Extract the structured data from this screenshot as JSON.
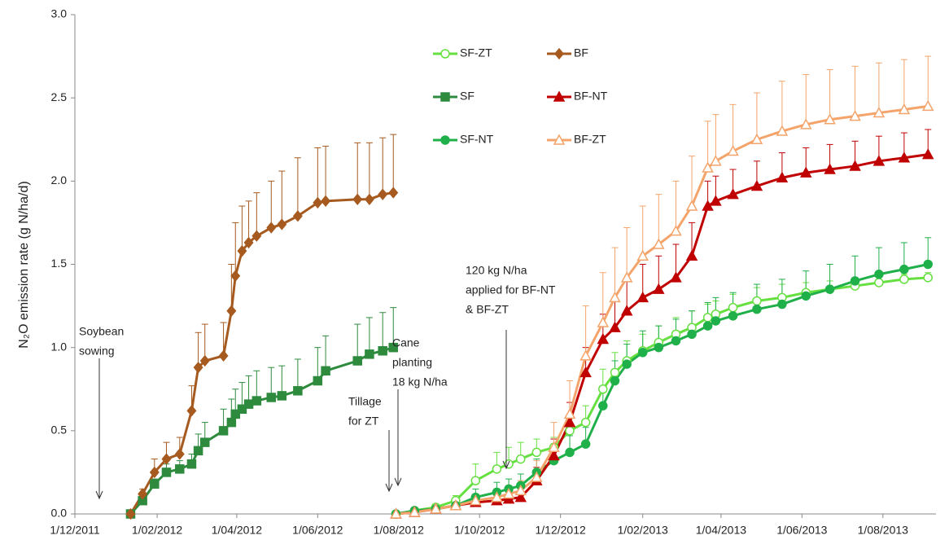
{
  "chart_data": {
    "type": "line",
    "y_label": "N₂O emission rate (g N/ha/d)",
    "xlim": [
      "2011-12-01",
      "2013-09-10"
    ],
    "xticks": [
      {
        "value": "2011-12-01",
        "label": "1/12/2011"
      },
      {
        "value": "2012-02-01",
        "label": "1/02/2012"
      },
      {
        "value": "2012-04-01",
        "label": "1/04/2012"
      },
      {
        "value": "2012-06-01",
        "label": "1/06/2012"
      },
      {
        "value": "2012-08-01",
        "label": "1/08/2012"
      },
      {
        "value": "2012-10-01",
        "label": "1/10/2012"
      },
      {
        "value": "2012-12-01",
        "label": "1/12/2012"
      },
      {
        "value": "2013-02-01",
        "label": "1/02/2013"
      },
      {
        "value": "2013-04-01",
        "label": "1/04/2013"
      },
      {
        "value": "2013-06-01",
        "label": "1/06/2013"
      },
      {
        "value": "2013-08-01",
        "label": "1/08/2013"
      }
    ],
    "ylim": [
      0,
      3
    ],
    "yticks": [
      {
        "value": 0,
        "label": "0.0"
      },
      0.5,
      {
        "value": 1,
        "label": "1.0"
      },
      1.5,
      {
        "value": 2,
        "label": "2.0"
      },
      2.5,
      {
        "value": 3,
        "label": "3.0"
      }
    ],
    "grid": false,
    "series": [
      {
        "name": "SF-ZT",
        "color": "#66e040",
        "marker": "circle",
        "filled": false,
        "x": [
          "2012-07-30",
          "2012-08-13",
          "2012-08-29",
          "2012-09-13",
          "2012-09-28",
          "2012-10-14",
          "2012-10-23",
          "2012-11-01",
          "2012-11-13",
          "2012-11-26",
          "2012-12-08",
          "2012-12-20",
          "2013-01-02",
          "2013-01-11",
          "2013-01-20",
          "2013-02-01",
          "2013-02-13",
          "2013-02-26",
          "2013-03-10",
          "2013-03-22",
          "2013-03-28",
          "2013-04-10",
          "2013-04-28",
          "2013-05-17",
          "2013-06-04",
          "2013-06-22",
          "2013-07-11",
          "2013-07-29",
          "2013-08-17",
          "2013-09-04"
        ],
        "values": [
          0,
          0.02,
          0.04,
          0.08,
          0.2,
          0.27,
          0.3,
          0.33,
          0.37,
          0.4,
          0.5,
          0.55,
          0.75,
          0.85,
          0.92,
          0.98,
          1.03,
          1.08,
          1.12,
          1.18,
          1.2,
          1.24,
          1.28,
          1.3,
          1.33,
          1.35,
          1.37,
          1.39,
          1.41,
          1.42
        ],
        "errors": [
          0,
          0.01,
          0.02,
          0.03,
          0.1,
          0.1,
          0.1,
          0.1,
          0.08,
          0.06,
          0.08,
          0.1,
          0.12,
          0.12,
          0.12,
          0.1,
          0.1,
          0.1,
          0.1,
          0.08,
          0.08,
          0.08,
          0.08,
          0.08,
          0.06,
          0.05,
          0.05,
          0.05,
          0.03,
          0.03
        ]
      },
      {
        "name": "SF",
        "color": "#2e8b3e",
        "marker": "square",
        "filled": true,
        "x": [
          "2012-01-12",
          "2012-01-21",
          "2012-01-30",
          "2012-02-08",
          "2012-02-18",
          "2012-02-27",
          "2012-03-03",
          "2012-03-08",
          "2012-03-22",
          "2012-03-28",
          "2012-03-31",
          "2012-04-05",
          "2012-04-10",
          "2012-04-16",
          "2012-04-27",
          "2012-05-05",
          "2012-05-17",
          "2012-06-01",
          "2012-06-07",
          "2012-07-01",
          "2012-07-10",
          "2012-07-20",
          "2012-07-28"
        ],
        "values": [
          0,
          0.08,
          0.18,
          0.25,
          0.27,
          0.3,
          0.38,
          0.43,
          0.5,
          0.55,
          0.6,
          0.63,
          0.66,
          0.68,
          0.7,
          0.71,
          0.74,
          0.8,
          0.86,
          0.92,
          0.96,
          0.98,
          1.0
        ],
        "errors": [
          0,
          0.02,
          0.03,
          0.05,
          0.05,
          0.06,
          0.1,
          0.12,
          0.13,
          0.14,
          0.15,
          0.16,
          0.17,
          0.18,
          0.18,
          0.18,
          0.19,
          0.2,
          0.21,
          0.22,
          0.22,
          0.23,
          0.24
        ]
      },
      {
        "name": "SF-NT",
        "color": "#1fb04a",
        "marker": "circle",
        "filled": true,
        "x": [
          "2012-07-30",
          "2012-08-13",
          "2012-08-29",
          "2012-09-13",
          "2012-09-28",
          "2012-10-14",
          "2012-10-23",
          "2012-11-01",
          "2012-11-13",
          "2012-11-26",
          "2012-12-08",
          "2012-12-20",
          "2013-01-02",
          "2013-01-11",
          "2013-01-20",
          "2013-02-01",
          "2013-02-13",
          "2013-02-26",
          "2013-03-10",
          "2013-03-22",
          "2013-03-28",
          "2013-04-10",
          "2013-04-28",
          "2013-05-17",
          "2013-06-04",
          "2013-06-22",
          "2013-07-11",
          "2013-07-29",
          "2013-08-17",
          "2013-09-04"
        ],
        "values": [
          0,
          0.02,
          0.03,
          0.05,
          0.1,
          0.13,
          0.15,
          0.17,
          0.25,
          0.32,
          0.37,
          0.42,
          0.65,
          0.8,
          0.9,
          0.97,
          1.0,
          1.04,
          1.08,
          1.13,
          1.16,
          1.19,
          1.23,
          1.26,
          1.31,
          1.35,
          1.4,
          1.44,
          1.47,
          1.5
        ],
        "errors": [
          0,
          0.01,
          0.02,
          0.03,
          0.05,
          0.06,
          0.06,
          0.07,
          0.08,
          0.1,
          0.1,
          0.1,
          0.12,
          0.12,
          0.12,
          0.13,
          0.13,
          0.13,
          0.14,
          0.14,
          0.14,
          0.14,
          0.15,
          0.15,
          0.15,
          0.15,
          0.15,
          0.16,
          0.16,
          0.16
        ]
      },
      {
        "name": "BF",
        "color": "#a65a1f",
        "marker": "diamond",
        "filled": true,
        "x": [
          "2012-01-12",
          "2012-01-21",
          "2012-01-30",
          "2012-02-08",
          "2012-02-18",
          "2012-02-27",
          "2012-03-03",
          "2012-03-08",
          "2012-03-22",
          "2012-03-28",
          "2012-03-31",
          "2012-04-05",
          "2012-04-10",
          "2012-04-16",
          "2012-04-27",
          "2012-05-05",
          "2012-05-17",
          "2012-06-01",
          "2012-06-07",
          "2012-07-01",
          "2012-07-10",
          "2012-07-20",
          "2012-07-28"
        ],
        "values": [
          0,
          0.12,
          0.25,
          0.33,
          0.36,
          0.62,
          0.88,
          0.92,
          0.95,
          1.22,
          1.43,
          1.58,
          1.63,
          1.67,
          1.72,
          1.74,
          1.79,
          1.87,
          1.88,
          1.89,
          1.89,
          1.92,
          1.93
        ],
        "errors": [
          0,
          0.03,
          0.08,
          0.1,
          0.1,
          0.15,
          0.21,
          0.22,
          0.2,
          0.28,
          0.32,
          0.27,
          0.25,
          0.26,
          0.28,
          0.32,
          0.35,
          0.33,
          0.33,
          0.34,
          0.34,
          0.34,
          0.35
        ]
      },
      {
        "name": "BF-NT",
        "color": "#c00000",
        "marker": "triangle",
        "filled": true,
        "x": [
          "2012-07-30",
          "2012-08-13",
          "2012-08-29",
          "2012-09-13",
          "2012-09-28",
          "2012-10-14",
          "2012-10-23",
          "2012-11-01",
          "2012-11-13",
          "2012-11-26",
          "2012-12-08",
          "2012-12-20",
          "2013-01-02",
          "2013-01-11",
          "2013-01-20",
          "2013-02-01",
          "2013-02-13",
          "2013-02-26",
          "2013-03-10",
          "2013-03-22",
          "2013-03-28",
          "2013-04-10",
          "2013-04-28",
          "2013-05-17",
          "2013-06-04",
          "2013-06-22",
          "2013-07-11",
          "2013-07-29",
          "2013-08-17",
          "2013-09-04"
        ],
        "values": [
          0,
          0.01,
          0.03,
          0.05,
          0.07,
          0.08,
          0.09,
          0.1,
          0.2,
          0.35,
          0.55,
          0.85,
          1.05,
          1.12,
          1.22,
          1.3,
          1.35,
          1.42,
          1.55,
          1.85,
          1.88,
          1.92,
          1.97,
          2.02,
          2.05,
          2.07,
          2.09,
          2.12,
          2.14,
          2.16
        ],
        "errors": [
          0,
          0.01,
          0.02,
          0.03,
          0.03,
          0.04,
          0.04,
          0.05,
          0.08,
          0.1,
          0.12,
          0.15,
          0.15,
          0.18,
          0.18,
          0.2,
          0.2,
          0.2,
          0.2,
          0.15,
          0.15,
          0.15,
          0.15,
          0.15,
          0.15,
          0.15,
          0.15,
          0.15,
          0.15,
          0.15
        ]
      },
      {
        "name": "BF-ZT",
        "color": "#f4a46a",
        "marker": "triangle",
        "filled": false,
        "x": [
          "2012-07-30",
          "2012-08-13",
          "2012-08-29",
          "2012-09-13",
          "2012-09-28",
          "2012-10-14",
          "2012-10-23",
          "2012-11-01",
          "2012-11-13",
          "2012-11-26",
          "2012-12-08",
          "2012-12-20",
          "2013-01-02",
          "2013-01-11",
          "2013-01-20",
          "2013-02-01",
          "2013-02-13",
          "2013-02-26",
          "2013-03-10",
          "2013-03-22",
          "2013-03-28",
          "2013-04-10",
          "2013-04-28",
          "2013-05-17",
          "2013-06-04",
          "2013-06-22",
          "2013-07-11",
          "2013-07-29",
          "2013-08-17",
          "2013-09-04"
        ],
        "values": [
          0,
          0.01,
          0.03,
          0.05,
          0.08,
          0.1,
          0.12,
          0.14,
          0.22,
          0.4,
          0.6,
          0.95,
          1.15,
          1.3,
          1.42,
          1.55,
          1.62,
          1.7,
          1.85,
          2.08,
          2.12,
          2.18,
          2.25,
          2.3,
          2.34,
          2.37,
          2.39,
          2.41,
          2.43,
          2.45
        ],
        "errors": [
          0,
          0.01,
          0.02,
          0.03,
          0.04,
          0.05,
          0.05,
          0.06,
          0.1,
          0.15,
          0.2,
          0.3,
          0.3,
          0.3,
          0.3,
          0.3,
          0.3,
          0.3,
          0.3,
          0.28,
          0.28,
          0.28,
          0.28,
          0.3,
          0.3,
          0.3,
          0.3,
          0.3,
          0.3,
          0.3
        ]
      }
    ],
    "annotations": [
      {
        "lines": [
          "Soybean",
          "sowing"
        ]
      },
      {
        "lines": [
          "Tillage",
          "for ZT"
        ]
      },
      {
        "lines": [
          "Cane",
          "planting",
          "18 kg N/ha"
        ]
      },
      {
        "lines": [
          "120 kg N/ha",
          "applied for BF-NT",
          "& BF-ZT"
        ]
      }
    ]
  }
}
